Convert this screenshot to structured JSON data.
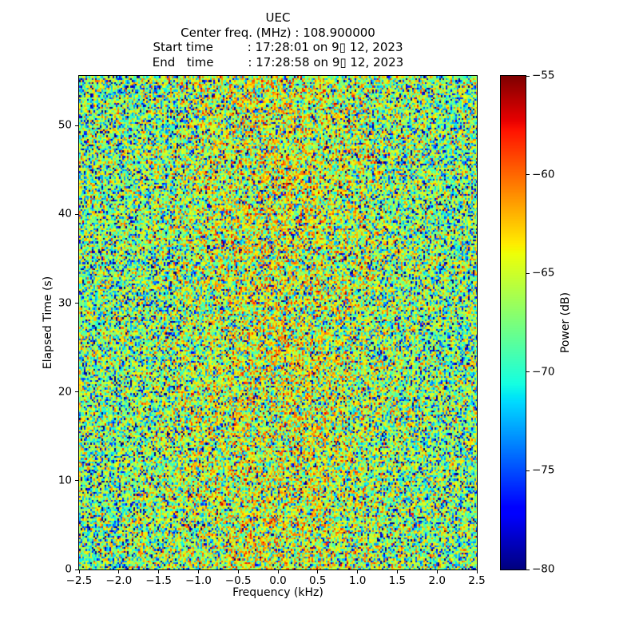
{
  "title_lines": [
    "UEC",
    "Center freq. (MHz) : 108.900000",
    "Start time         : 17:28:01 on 9▯ 12, 2023",
    "End   time         : 17:28:58 on 9▯ 12, 2023"
  ],
  "axes": {
    "x": {
      "label": "Frequency (kHz)",
      "tick_labels": [
        "−2.5",
        "−2.0",
        "−1.5",
        "−1.0",
        "−0.5",
        "0.0",
        "0.5",
        "1.0",
        "1.5",
        "2.0",
        "2.5"
      ],
      "tick_values": [
        -2.5,
        -2.0,
        -1.5,
        -1.0,
        -0.5,
        0.0,
        0.5,
        1.0,
        1.5,
        2.0,
        2.5
      ],
      "range": [
        -2.5,
        2.5
      ]
    },
    "y": {
      "label": "Elapsed Time (s)",
      "tick_labels": [
        "0",
        "10",
        "20",
        "30",
        "40",
        "50"
      ],
      "tick_values": [
        0,
        10,
        20,
        30,
        40,
        50
      ],
      "range": [
        0,
        55.6
      ]
    }
  },
  "colorbar": {
    "label": "Power (dB)",
    "tick_labels": [
      "−55",
      "−60",
      "−65",
      "−70",
      "−75",
      "−80"
    ],
    "tick_values": [
      -55,
      -60,
      -65,
      -70,
      -75,
      -80
    ],
    "range": [
      -80,
      -55
    ]
  },
  "chart_data": {
    "type": "heatmap",
    "title": "UEC",
    "center_freq_mhz": 108.9,
    "start_time": "17:28:01 on 9▯ 12, 2023",
    "end_time": "17:28:58 on 9▯ 12, 2023",
    "xlabel": "Frequency (kHz)",
    "ylabel": "Elapsed Time (s)",
    "xlim": [
      -2.5,
      2.5
    ],
    "ylim": [
      0,
      55.6
    ],
    "clim_db": [
      -80,
      -55
    ],
    "colormap": "jet",
    "colorbar_label": "Power (dB)",
    "grid_cols": 250,
    "grid_rows": 260,
    "noise": {
      "description": "random RF noise floor; warmer (higher power) band near 0 kHz, cooler toward band edges",
      "seed": 42,
      "model": "exponential_power_db",
      "base_db": -66.2,
      "center_bump_db": 2.6,
      "bump_center_khz": 0.0,
      "bump_sigma_khz": 1.35
    }
  }
}
